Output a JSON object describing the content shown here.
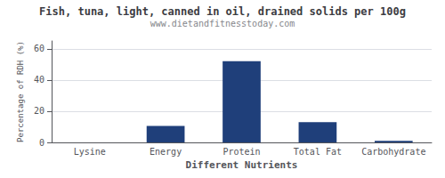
{
  "chart_data": {
    "type": "bar",
    "title": "Fish, tuna, light, canned in oil, drained solids per 100g",
    "subtitle": "www.dietandfitnesstoday.com",
    "categories": [
      "Lysine",
      "Energy",
      "Protein",
      "Total Fat",
      "Carbohydrate"
    ],
    "values": [
      0.0,
      10.5,
      52.0,
      13.0,
      1.0
    ],
    "color": "#1f3f7a",
    "xlabel": "Different Nutrients",
    "ylabel": "Percentage of RDH (%)",
    "ylim": [
      0,
      65
    ],
    "yticks": [
      0,
      20,
      40,
      60
    ],
    "grid": true
  }
}
